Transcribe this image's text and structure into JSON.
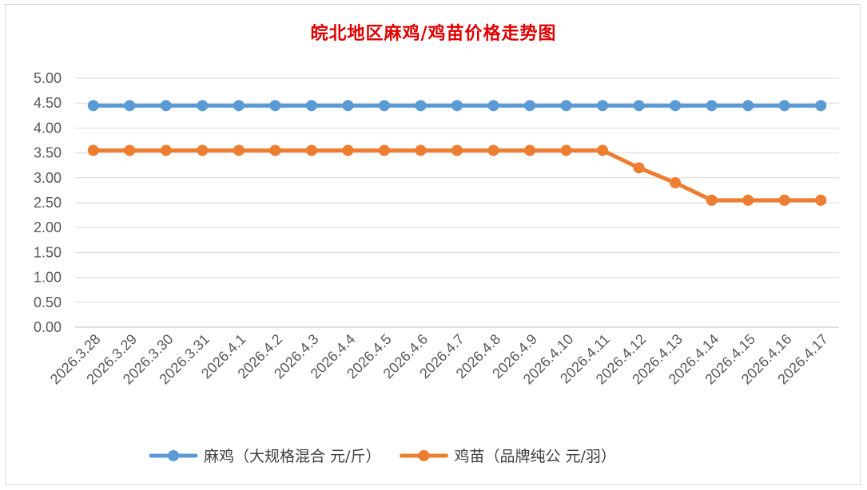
{
  "chart_data": {
    "type": "line",
    "title": "皖北地区麻鸡/鸡苗价格走势图",
    "xlabel": "",
    "ylabel": "",
    "ylim": [
      0,
      5
    ],
    "yticks": [
      "0.00",
      "0.50",
      "1.00",
      "1.50",
      "2.00",
      "2.50",
      "3.00",
      "3.50",
      "4.00",
      "4.50",
      "5.00"
    ],
    "grid": true,
    "legend_position": "bottom",
    "categories": [
      "2026.3.28",
      "2026.3.29",
      "2026.3.30",
      "2026.3.31",
      "2026.4.1",
      "2026.4.2",
      "2026.4.3",
      "2026.4.4",
      "2026.4.5",
      "2026.4.6",
      "2026.4.7",
      "2026.4.8",
      "2026.4.9",
      "2026.4.10",
      "2026.4.11",
      "2026.4.12",
      "2026.4.13",
      "2026.4.14",
      "2026.4.15",
      "2026.4.16",
      "2026.4.17"
    ],
    "series": [
      {
        "name": "麻鸡（大规格混合 元/斤）",
        "color": "#5b9bd5",
        "values": [
          4.45,
          4.45,
          4.45,
          4.45,
          4.45,
          4.45,
          4.45,
          4.45,
          4.45,
          4.45,
          4.45,
          4.45,
          4.45,
          4.45,
          4.45,
          4.45,
          4.45,
          4.45,
          4.45,
          4.45,
          4.45
        ]
      },
      {
        "name": "鸡苗（品牌纯公 元/羽）",
        "color": "#ed7d31",
        "values": [
          3.55,
          3.55,
          3.55,
          3.55,
          3.55,
          3.55,
          3.55,
          3.55,
          3.55,
          3.55,
          3.55,
          3.55,
          3.55,
          3.55,
          3.55,
          3.2,
          2.9,
          2.55,
          2.55,
          2.55,
          2.55
        ]
      }
    ]
  }
}
